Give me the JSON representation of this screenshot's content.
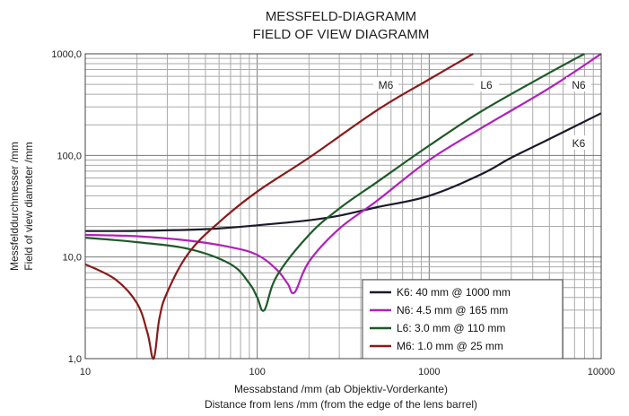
{
  "chart_data": {
    "type": "line",
    "title": "MESSFELD-DIAGRAMM",
    "subtitle": "FIELD OF VIEW DIAGRAMM",
    "xlabel": "Messabstand /mm (ab Objektiv-Vorderkante)",
    "xlabel2": "Distance from lens /mm (from the edge of the lens barrel)",
    "ylabel": "Messfelddurchmesser /mm",
    "ylabel2": "Field of view diameter /mm",
    "x_scale": "log",
    "y_scale": "log",
    "xlim": [
      10,
      10000
    ],
    "ylim": [
      1,
      1000
    ],
    "grid": true,
    "x_ticks": [
      {
        "value": 10,
        "label": "10"
      },
      {
        "value": 100,
        "label": "100"
      },
      {
        "value": 1000,
        "label": "1000"
      },
      {
        "value": 10000,
        "label": "10000"
      }
    ],
    "y_ticks": [
      {
        "value": 1,
        "label": "1,0"
      },
      {
        "value": 10,
        "label": "10,0"
      },
      {
        "value": 100,
        "label": "100,0"
      },
      {
        "value": 1000,
        "label": "1000,0"
      }
    ],
    "legend_position": "bottom-right",
    "series": [
      {
        "name": "K6: 40 mm @ 1000 mm",
        "label": "K6",
        "color": "#1a1a2a",
        "x": [
          10,
          20,
          50,
          100,
          200,
          300,
          500,
          1000,
          2000,
          3000,
          5000,
          10000
        ],
        "y": [
          18,
          18.1,
          18.8,
          20.5,
          23,
          25.5,
          31,
          40,
          65,
          95,
          145,
          260
        ]
      },
      {
        "name": "N6: 4.5 mm @ 165 mm",
        "label": "N6",
        "color": "#b020b8",
        "x": [
          10,
          20,
          40,
          70,
          100,
          130,
          150,
          165,
          200,
          300,
          500,
          1000,
          2000,
          5000,
          10000
        ],
        "y": [
          16.5,
          16,
          14.5,
          12.5,
          10.5,
          7.5,
          5.5,
          4.5,
          9,
          19,
          36,
          90,
          185,
          460,
          1000
        ]
      },
      {
        "name": "L6:  3.0 mm @ 110 mm",
        "label": "L6",
        "color": "#1e5a28",
        "x": [
          10,
          20,
          40,
          70,
          90,
          100,
          110,
          130,
          200,
          300,
          500,
          1000,
          2000,
          5000,
          8000
        ],
        "y": [
          15.5,
          14,
          12,
          8.5,
          5.5,
          4,
          3,
          6.5,
          16.5,
          30,
          55,
          125,
          270,
          650,
          1000
        ]
      },
      {
        "name": "M6: 1.0 mm @ 25 mm",
        "label": "M6",
        "color": "#8a1a1a",
        "x": [
          10,
          15,
          20,
          23,
          25,
          27,
          30,
          40,
          60,
          100,
          200,
          500,
          1000,
          1800
        ],
        "y": [
          8.5,
          6,
          3.5,
          1.8,
          1,
          2.5,
          4.5,
          11,
          22,
          44,
          95,
          280,
          560,
          1000
        ]
      }
    ]
  }
}
